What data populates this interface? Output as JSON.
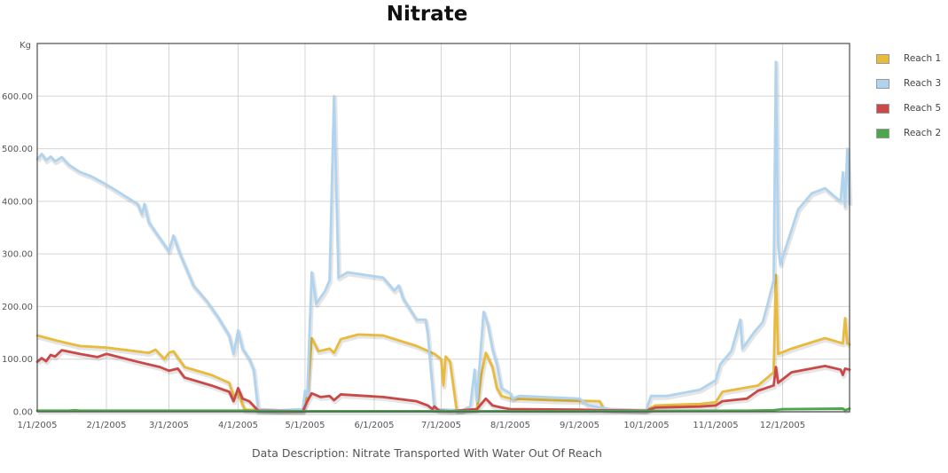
{
  "chart_data": {
    "type": "line",
    "title": "Nitrate",
    "ylabel": "Kg",
    "xlabel": "",
    "description": "Data Description: Nitrate Transported With Water Out Of Reach",
    "ylim": [
      0,
      700
    ],
    "xlim": [
      "2005-01-01",
      "2005-12-31"
    ],
    "yticks": [
      "0.00",
      "100.00",
      "200.00",
      "300.00",
      "400.00",
      "500.00",
      "600.00"
    ],
    "xticks": [
      "1/1/2005",
      "2/1/2005",
      "3/1/2005",
      "4/1/2005",
      "5/1/2005",
      "6/1/2005",
      "7/1/2005",
      "8/1/2005",
      "9/1/2005",
      "10/1/2005",
      "11/1/2005",
      "12/1/2005"
    ],
    "grid": true,
    "legend_position": "right",
    "series": [
      {
        "name": "Reach 1",
        "color": "#e8bb3c",
        "points": [
          [
            "2005-01-01",
            145
          ],
          [
            "2005-01-10",
            135
          ],
          [
            "2005-01-20",
            125
          ],
          [
            "2005-02-01",
            122
          ],
          [
            "2005-02-20",
            112
          ],
          [
            "2005-02-23",
            118
          ],
          [
            "2005-02-27",
            100
          ],
          [
            "2005-03-01",
            112
          ],
          [
            "2005-03-03",
            115
          ],
          [
            "2005-03-08",
            85
          ],
          [
            "2005-03-20",
            70
          ],
          [
            "2005-03-28",
            55
          ],
          [
            "2005-03-30",
            30
          ],
          [
            "2005-04-01",
            35
          ],
          [
            "2005-04-04",
            4
          ],
          [
            "2005-04-15",
            2
          ],
          [
            "2005-04-30",
            2
          ],
          [
            "2005-05-02",
            30
          ],
          [
            "2005-05-04",
            140
          ],
          [
            "2005-05-07",
            115
          ],
          [
            "2005-05-12",
            120
          ],
          [
            "2005-05-14",
            112
          ],
          [
            "2005-05-17",
            138
          ],
          [
            "2005-05-25",
            147
          ],
          [
            "2005-06-05",
            145
          ],
          [
            "2005-06-20",
            125
          ],
          [
            "2005-06-28",
            110
          ],
          [
            "2005-07-01",
            100
          ],
          [
            "2005-07-02",
            50
          ],
          [
            "2005-07-03",
            105
          ],
          [
            "2005-07-05",
            95
          ],
          [
            "2005-07-08",
            2
          ],
          [
            "2005-07-17",
            5
          ],
          [
            "2005-07-19",
            70
          ],
          [
            "2005-07-21",
            112
          ],
          [
            "2005-07-24",
            85
          ],
          [
            "2005-07-26",
            45
          ],
          [
            "2005-07-28",
            30
          ],
          [
            "2005-08-01",
            25
          ],
          [
            "2005-08-20",
            22
          ],
          [
            "2005-09-10",
            20
          ],
          [
            "2005-09-12",
            5
          ],
          [
            "2005-10-01",
            3
          ],
          [
            "2005-10-05",
            12
          ],
          [
            "2005-10-25",
            15
          ],
          [
            "2005-11-01",
            18
          ],
          [
            "2005-11-04",
            38
          ],
          [
            "2005-11-20",
            50
          ],
          [
            "2005-11-27",
            75
          ],
          [
            "2005-11-28",
            260
          ],
          [
            "2005-11-29",
            110
          ],
          [
            "2005-12-05",
            120
          ],
          [
            "2005-12-20",
            140
          ],
          [
            "2005-12-28",
            130
          ],
          [
            "2005-12-29",
            178
          ],
          [
            "2005-12-30",
            130
          ],
          [
            "2005-12-31",
            128
          ]
        ]
      },
      {
        "name": "Reach 3",
        "color": "#b0d4ef",
        "points": [
          [
            "2005-01-01",
            480
          ],
          [
            "2005-01-03",
            490
          ],
          [
            "2005-01-05",
            478
          ],
          [
            "2005-01-07",
            485
          ],
          [
            "2005-01-09",
            476
          ],
          [
            "2005-01-12",
            484
          ],
          [
            "2005-01-15",
            470
          ],
          [
            "2005-01-20",
            456
          ],
          [
            "2005-01-25",
            448
          ],
          [
            "2005-02-01",
            432
          ],
          [
            "2005-02-15",
            395
          ],
          [
            "2005-02-17",
            375
          ],
          [
            "2005-02-18",
            395
          ],
          [
            "2005-02-20",
            360
          ],
          [
            "2005-03-01",
            305
          ],
          [
            "2005-03-03",
            335
          ],
          [
            "2005-03-06",
            300
          ],
          [
            "2005-03-12",
            240
          ],
          [
            "2005-03-18",
            210
          ],
          [
            "2005-03-23",
            180
          ],
          [
            "2005-03-28",
            145
          ],
          [
            "2005-03-30",
            110
          ],
          [
            "2005-04-01",
            155
          ],
          [
            "2005-04-03",
            120
          ],
          [
            "2005-04-06",
            100
          ],
          [
            "2005-04-08",
            80
          ],
          [
            "2005-04-10",
            5
          ],
          [
            "2005-04-20",
            3
          ],
          [
            "2005-04-30",
            5
          ],
          [
            "2005-05-01",
            40
          ],
          [
            "2005-05-02",
            30
          ],
          [
            "2005-05-04",
            265
          ],
          [
            "2005-05-06",
            205
          ],
          [
            "2005-05-10",
            230
          ],
          [
            "2005-05-12",
            250
          ],
          [
            "2005-05-14",
            600
          ],
          [
            "2005-05-16",
            255
          ],
          [
            "2005-05-20",
            265
          ],
          [
            "2005-06-05",
            255
          ],
          [
            "2005-06-10",
            230
          ],
          [
            "2005-06-12",
            240
          ],
          [
            "2005-06-14",
            215
          ],
          [
            "2005-06-20",
            175
          ],
          [
            "2005-06-24",
            175
          ],
          [
            "2005-06-25",
            150
          ],
          [
            "2005-06-26",
            100
          ],
          [
            "2005-06-28",
            5
          ],
          [
            "2005-07-08",
            3
          ],
          [
            "2005-07-10",
            2
          ],
          [
            "2005-07-14",
            10
          ],
          [
            "2005-07-16",
            80
          ],
          [
            "2005-07-17",
            20
          ],
          [
            "2005-07-20",
            190
          ],
          [
            "2005-07-22",
            165
          ],
          [
            "2005-07-24",
            120
          ],
          [
            "2005-07-26",
            90
          ],
          [
            "2005-07-28",
            45
          ],
          [
            "2005-08-01",
            35
          ],
          [
            "2005-08-02",
            25
          ],
          [
            "2005-08-05",
            30
          ],
          [
            "2005-09-01",
            25
          ],
          [
            "2005-09-05",
            12
          ],
          [
            "2005-09-15",
            5
          ],
          [
            "2005-09-30",
            3
          ],
          [
            "2005-10-01",
            5
          ],
          [
            "2005-10-03",
            30
          ],
          [
            "2005-10-10",
            30
          ],
          [
            "2005-10-25",
            42
          ],
          [
            "2005-11-01",
            60
          ],
          [
            "2005-11-03",
            90
          ],
          [
            "2005-11-08",
            115
          ],
          [
            "2005-11-12",
            175
          ],
          [
            "2005-11-13",
            120
          ],
          [
            "2005-11-18",
            150
          ],
          [
            "2005-11-22",
            170
          ],
          [
            "2005-11-24",
            200
          ],
          [
            "2005-11-27",
            250
          ],
          [
            "2005-11-28",
            665
          ],
          [
            "2005-11-29",
            320
          ],
          [
            "2005-11-30",
            280
          ],
          [
            "2005-12-03",
            320
          ],
          [
            "2005-12-08",
            385
          ],
          [
            "2005-12-14",
            415
          ],
          [
            "2005-12-20",
            425
          ],
          [
            "2005-12-24",
            410
          ],
          [
            "2005-12-27",
            400
          ],
          [
            "2005-12-28",
            455
          ],
          [
            "2005-12-29",
            390
          ],
          [
            "2005-12-30",
            500
          ],
          [
            "2005-12-31",
            395
          ]
        ]
      },
      {
        "name": "Reach 5",
        "color": "#c94848",
        "points": [
          [
            "2005-01-01",
            95
          ],
          [
            "2005-01-03",
            102
          ],
          [
            "2005-01-05",
            96
          ],
          [
            "2005-01-07",
            108
          ],
          [
            "2005-01-09",
            105
          ],
          [
            "2005-01-12",
            117
          ],
          [
            "2005-01-20",
            110
          ],
          [
            "2005-01-28",
            104
          ],
          [
            "2005-02-01",
            110
          ],
          [
            "2005-02-15",
            95
          ],
          [
            "2005-02-25",
            85
          ],
          [
            "2005-03-01",
            78
          ],
          [
            "2005-03-05",
            82
          ],
          [
            "2005-03-08",
            65
          ],
          [
            "2005-03-20",
            50
          ],
          [
            "2005-03-28",
            38
          ],
          [
            "2005-03-30",
            20
          ],
          [
            "2005-04-01",
            45
          ],
          [
            "2005-04-03",
            25
          ],
          [
            "2005-04-06",
            20
          ],
          [
            "2005-04-10",
            2
          ],
          [
            "2005-04-30",
            1
          ],
          [
            "2005-05-02",
            20
          ],
          [
            "2005-05-04",
            35
          ],
          [
            "2005-05-08",
            28
          ],
          [
            "2005-05-12",
            30
          ],
          [
            "2005-05-14",
            22
          ],
          [
            "2005-05-17",
            33
          ],
          [
            "2005-06-05",
            28
          ],
          [
            "2005-06-20",
            20
          ],
          [
            "2005-06-25",
            12
          ],
          [
            "2005-06-27",
            5
          ],
          [
            "2005-06-28",
            10
          ],
          [
            "2005-06-30",
            2
          ],
          [
            "2005-07-05",
            1
          ],
          [
            "2005-07-17",
            5
          ],
          [
            "2005-07-21",
            25
          ],
          [
            "2005-07-24",
            12
          ],
          [
            "2005-07-28",
            8
          ],
          [
            "2005-08-01",
            5
          ],
          [
            "2005-09-01",
            4
          ],
          [
            "2005-09-10",
            3
          ],
          [
            "2005-10-01",
            2
          ],
          [
            "2005-10-05",
            8
          ],
          [
            "2005-10-25",
            10
          ],
          [
            "2005-11-01",
            12
          ],
          [
            "2005-11-04",
            20
          ],
          [
            "2005-11-15",
            25
          ],
          [
            "2005-11-20",
            40
          ],
          [
            "2005-11-27",
            50
          ],
          [
            "2005-11-28",
            85
          ],
          [
            "2005-11-29",
            55
          ],
          [
            "2005-12-05",
            75
          ],
          [
            "2005-12-20",
            87
          ],
          [
            "2005-12-27",
            80
          ],
          [
            "2005-12-28",
            70
          ],
          [
            "2005-12-29",
            82
          ],
          [
            "2005-12-31",
            80
          ]
        ]
      },
      {
        "name": "Reach 2",
        "color": "#4aa84a",
        "points": [
          [
            "2005-01-01",
            2
          ],
          [
            "2005-01-15",
            2
          ],
          [
            "2005-01-18",
            3
          ],
          [
            "2005-01-20",
            2
          ],
          [
            "2005-04-05",
            2
          ],
          [
            "2005-04-10",
            1
          ],
          [
            "2005-06-01",
            1
          ],
          [
            "2005-09-01",
            1
          ],
          [
            "2005-11-15",
            2
          ],
          [
            "2005-11-27",
            3
          ],
          [
            "2005-12-01",
            5
          ],
          [
            "2005-12-28",
            6
          ],
          [
            "2005-12-29",
            3
          ],
          [
            "2005-12-31",
            6
          ]
        ]
      }
    ]
  }
}
